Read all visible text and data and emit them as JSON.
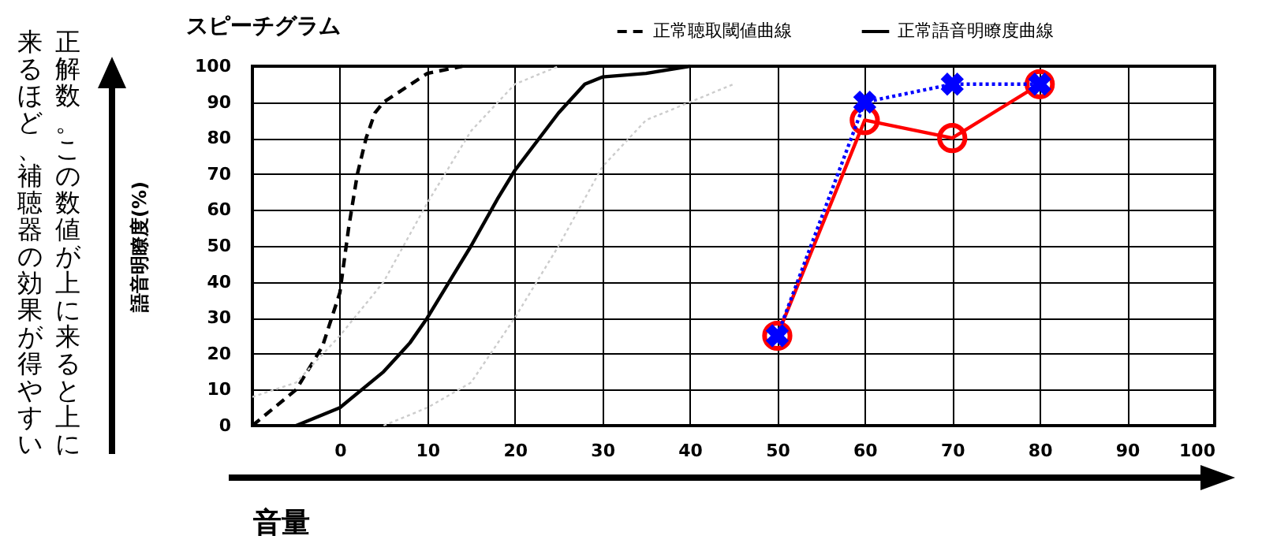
{
  "chart_data": {
    "type": "line",
    "title": "スピーチグラム",
    "xlabel": "音量",
    "ylabel": "語音明瞭度(%)",
    "annotations": [
      "正解数。この数値が上に来ると上に来るほど、補聴器の効果が得やすい"
    ],
    "xlim": [
      -10,
      100
    ],
    "xticks": [
      0,
      10,
      20,
      30,
      40,
      50,
      60,
      70,
      80,
      90,
      100
    ],
    "ylim": [
      0,
      100
    ],
    "yticks": [
      0,
      10,
      20,
      30,
      40,
      50,
      60,
      70,
      80,
      90,
      100
    ],
    "grid": true,
    "legend": "top right",
    "series": [
      {
        "name": "正常聴取閾値曲線",
        "color": "#000000",
        "line_style": "dashed",
        "x": [
          -10,
          -5,
          -2,
          0,
          1,
          2,
          3,
          4,
          5,
          10,
          14
        ],
        "values": [
          0,
          10,
          22,
          37,
          55,
          70,
          80,
          87,
          90,
          98,
          100
        ]
      },
      {
        "name": "正常語音明瞭度曲線",
        "color": "#000000",
        "line_style": "solid",
        "x": [
          -5,
          0,
          5,
          8,
          10,
          13,
          15,
          18,
          20,
          25,
          28,
          30,
          35,
          40
        ],
        "values": [
          0,
          5,
          15,
          23,
          30,
          42,
          50,
          63,
          71,
          87,
          95,
          97,
          98,
          100
        ]
      },
      {
        "color": "#cccccc",
        "line_style": "dotted",
        "x": [
          -10,
          -5,
          0,
          5,
          10,
          15,
          20,
          25
        ],
        "values": [
          8,
          12,
          25,
          40,
          62,
          82,
          95,
          100
        ]
      },
      {
        "color": "#cccccc",
        "line_style": "dotted",
        "x": [
          5,
          10,
          15,
          20,
          25,
          30,
          35,
          40,
          45
        ],
        "values": [
          0,
          5,
          12,
          30,
          50,
          72,
          85,
          90,
          95
        ]
      },
      {
        "color": "#ff0000",
        "line_style": "solid",
        "marker": "circle",
        "x": [
          50,
          60,
          70,
          80
        ],
        "values": [
          25,
          85,
          80,
          95
        ]
      },
      {
        "color": "#0000ff",
        "line_style": "dotted",
        "marker": "cross",
        "x": [
          50,
          60,
          70,
          80
        ],
        "values": [
          25,
          90,
          95,
          95
        ]
      }
    ]
  }
}
